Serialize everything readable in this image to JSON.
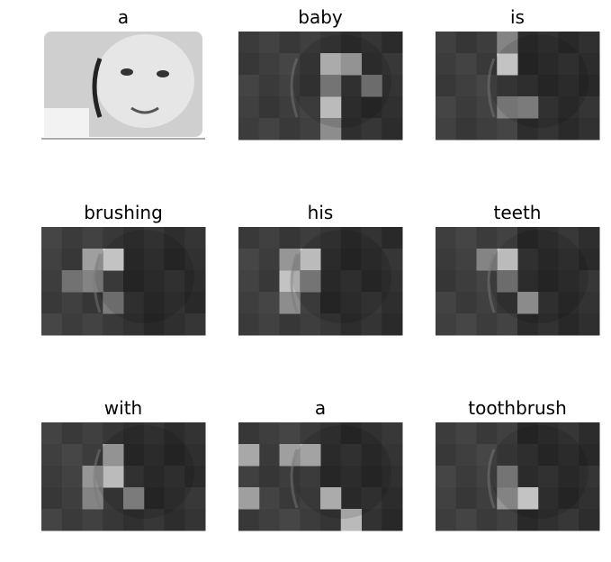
{
  "panels": [
    {
      "caption": "a"
    },
    {
      "caption": "baby"
    },
    {
      "caption": "is"
    },
    {
      "caption": "brushing"
    },
    {
      "caption": "his"
    },
    {
      "caption": "teeth"
    },
    {
      "caption": "with"
    },
    {
      "caption": "a"
    },
    {
      "caption": "toothbrush"
    }
  ]
}
